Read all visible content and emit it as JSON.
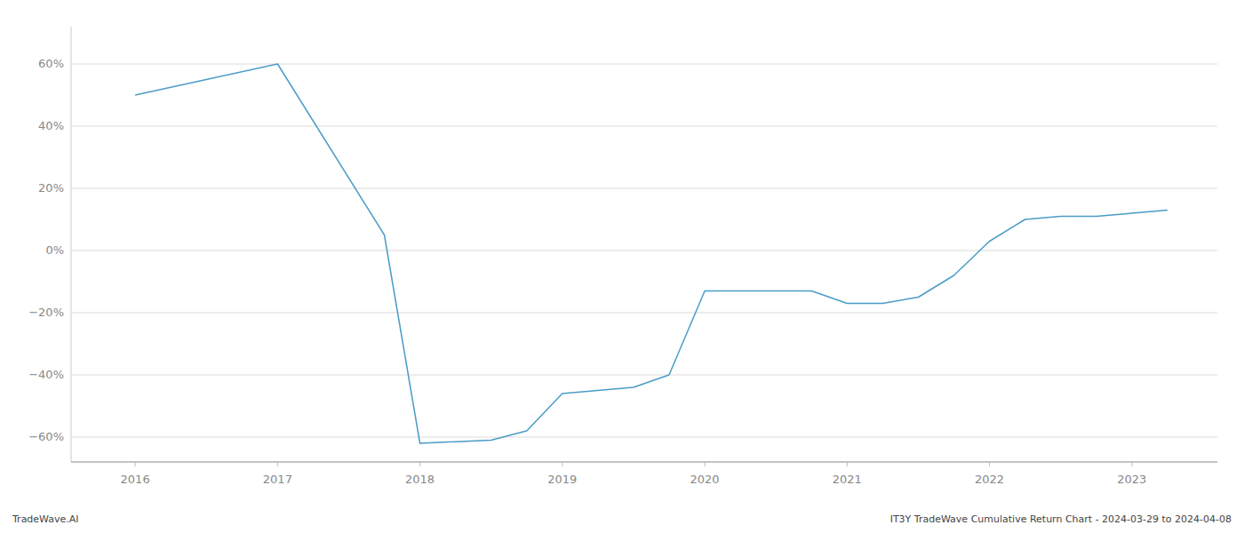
{
  "chart_data": {
    "type": "line",
    "x": [
      2016.0,
      2016.5,
      2017.0,
      2017.75,
      2018.0,
      2018.5,
      2018.75,
      2019.0,
      2019.5,
      2019.75,
      2020.0,
      2020.25,
      2020.5,
      2020.75,
      2021.0,
      2021.25,
      2021.5,
      2021.75,
      2022.0,
      2022.25,
      2022.5,
      2022.75,
      2023.0,
      2023.25
    ],
    "values": [
      50,
      55,
      60,
      5,
      -62,
      -61,
      -58,
      -46,
      -44,
      -40,
      -13,
      -13,
      -13,
      -13,
      -17,
      -17,
      -15,
      -8,
      3,
      10,
      11,
      11,
      12,
      13
    ],
    "color": "#4a9cc7",
    "xlim": [
      2015.55,
      2023.6
    ],
    "ylim": [
      -68,
      72
    ],
    "xticks": [
      2016,
      2017,
      2018,
      2019,
      2020,
      2021,
      2022,
      2023
    ],
    "yticks": [
      {
        "value": -60,
        "label": "−60%"
      },
      {
        "value": -40,
        "label": "−40%"
      },
      {
        "value": -20,
        "label": "−20%"
      },
      {
        "value": 0,
        "label": "0%"
      },
      {
        "value": 20,
        "label": "20%"
      },
      {
        "value": 40,
        "label": "40%"
      },
      {
        "value": 60,
        "label": "60%"
      }
    ],
    "grid": true,
    "annotations": [
      "TradeWave.AI",
      "IT3Y TradeWave Cumulative Return Chart - 2024-03-29 to 2024-04-08"
    ]
  }
}
